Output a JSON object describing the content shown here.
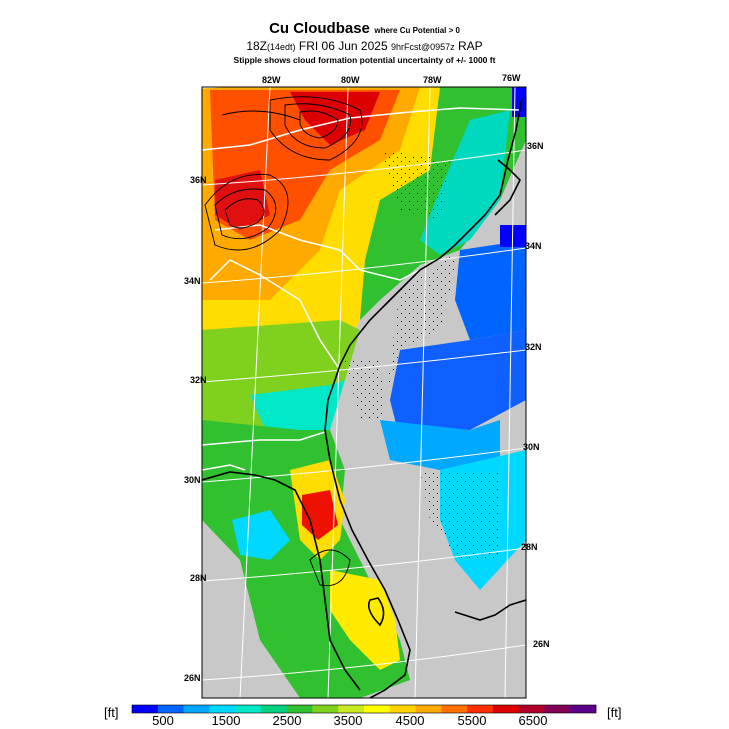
{
  "title": {
    "main": "Cu Cloudbase",
    "sub": "where Cu Potential > 0",
    "line2_prefix": "18Z",
    "line2_edt": "(14edt)",
    "line2_date": "FRI 06 Jun 2025",
    "line2_fcst": "9hrFcst@0957z",
    "line2_model": "RAP",
    "line3": "Stipple shows cloud formation potential uncertainty of +/- 1000 ft"
  },
  "map": {
    "lat_labels": [
      "36N",
      "34N",
      "32N",
      "30N",
      "28N",
      "26N",
      "36N",
      "34N",
      "32N",
      "30N",
      "28N",
      "26N"
    ],
    "lon_labels": [
      "82W",
      "80W",
      "78W",
      "76W"
    ]
  },
  "colorbar": {
    "unit_left": "[ft]",
    "unit_right": "[ft]",
    "tick_labels": [
      "500",
      "1500",
      "2500",
      "3500",
      "4500",
      "5500",
      "6500"
    ],
    "colors": [
      "#0000ff",
      "#0064ff",
      "#00a8ff",
      "#00d8ff",
      "#00e8c8",
      "#00d080",
      "#30c030",
      "#80d020",
      "#c8e820",
      "#ffff00",
      "#ffd400",
      "#ffaa00",
      "#ff7000",
      "#ff3000",
      "#dd0000",
      "#b0002a",
      "#800055",
      "#5a0088"
    ]
  },
  "legend_colors": {
    "no_data": "#c8c8c8",
    "coast": "#000000",
    "grid": "#ffffff"
  }
}
